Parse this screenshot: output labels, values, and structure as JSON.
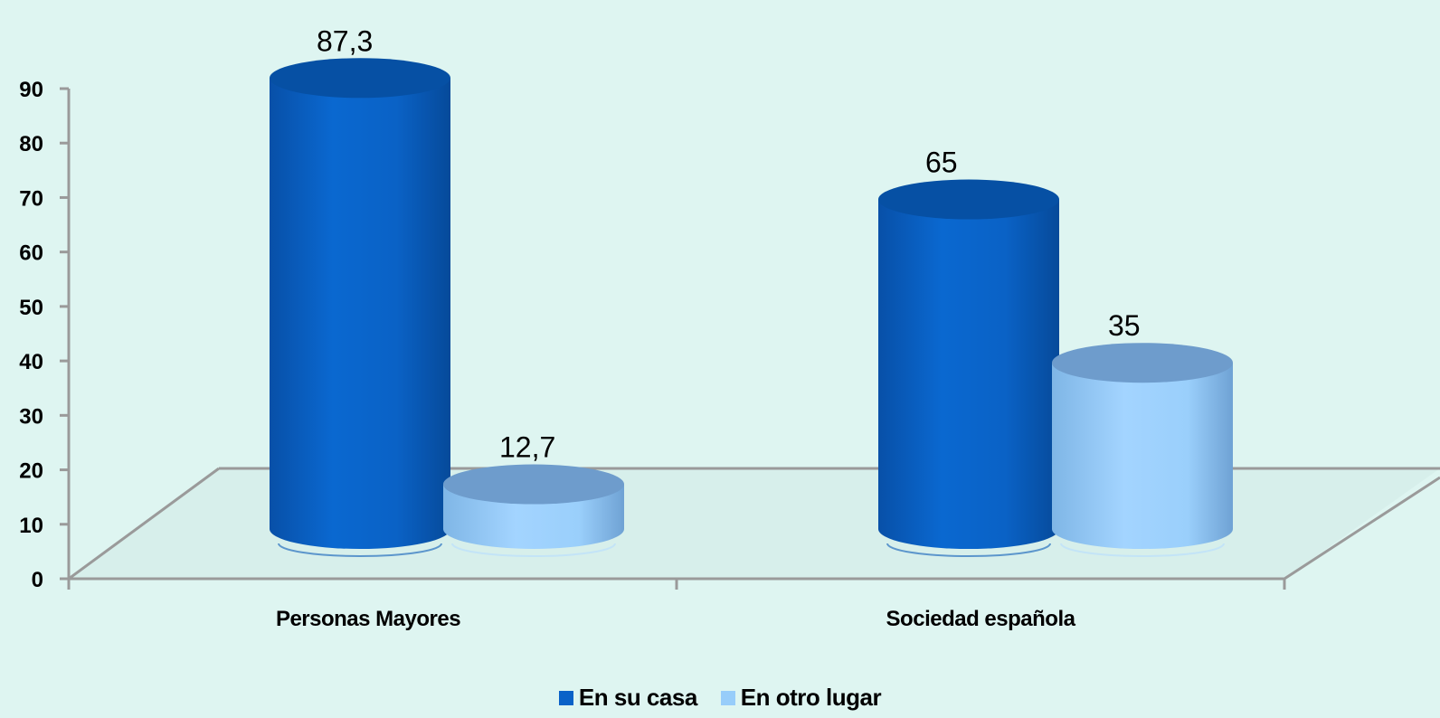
{
  "chart_data": {
    "type": "bar",
    "style": "3d-cylinder",
    "categories": [
      "Personas Mayores",
      "Sociedad española"
    ],
    "series": [
      {
        "name": "En su casa",
        "values": [
          87.3,
          65
        ],
        "labels": [
          "87,3",
          "65"
        ],
        "color": "#0a62c8"
      },
      {
        "name": "En otro lugar",
        "values": [
          12.7,
          35
        ],
        "labels": [
          "12,7",
          "35"
        ],
        "color": "#97cdfa"
      }
    ],
    "title": "",
    "xlabel": "",
    "ylabel": "",
    "ylim": [
      0,
      90
    ],
    "yticks": [
      0,
      10,
      20,
      30,
      40,
      50,
      60,
      70,
      80,
      90
    ],
    "legend": "bottom-center",
    "grid": false
  }
}
